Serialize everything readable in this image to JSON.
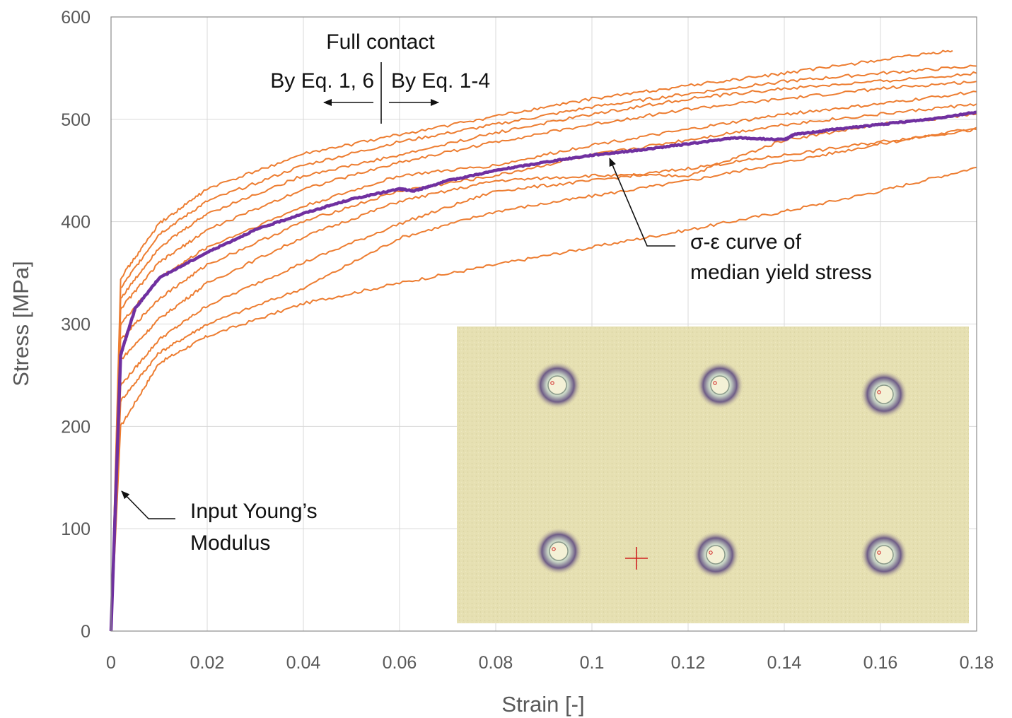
{
  "chart_data": {
    "type": "line",
    "xlabel": "Strain [-]",
    "ylabel": "Stress [MPa]",
    "xlim": [
      0,
      0.18
    ],
    "ylim": [
      0,
      600
    ],
    "x_ticks": [
      0,
      0.02,
      0.04,
      0.06,
      0.08,
      0.1,
      0.12,
      0.14,
      0.16,
      0.18
    ],
    "x_tick_labels": [
      "0",
      "0.02",
      "0.04",
      "0.06",
      "0.08",
      "0.1",
      "0.12",
      "0.14",
      "0.16",
      "0.18"
    ],
    "y_ticks": [
      0,
      100,
      200,
      300,
      400,
      500,
      600
    ],
    "y_tick_labels": [
      "0",
      "100",
      "200",
      "300",
      "400",
      "500",
      "600"
    ],
    "grid": true,
    "colors": {
      "individual": "#ED7D31",
      "median": "#7030A0",
      "grid": "#d9d9d9",
      "axis": "#595959"
    },
    "series": [
      {
        "role": "individual",
        "values": [
          [
            0,
            0
          ],
          [
            0.002,
            200
          ],
          [
            0.01,
            262
          ],
          [
            0.02,
            288
          ],
          [
            0.04,
            320
          ],
          [
            0.06,
            340
          ],
          [
            0.08,
            358
          ],
          [
            0.1,
            375
          ],
          [
            0.12,
            392
          ],
          [
            0.14,
            410
          ],
          [
            0.16,
            430
          ],
          [
            0.18,
            453
          ]
        ]
      },
      {
        "role": "individual",
        "values": [
          [
            0,
            0
          ],
          [
            0.002,
            225
          ],
          [
            0.01,
            272
          ],
          [
            0.02,
            300
          ],
          [
            0.04,
            335
          ],
          [
            0.06,
            384
          ],
          [
            0.08,
            410
          ],
          [
            0.1,
            425
          ],
          [
            0.12,
            440
          ],
          [
            0.14,
            458
          ],
          [
            0.16,
            476
          ],
          [
            0.18,
            492
          ]
        ]
      },
      {
        "role": "individual",
        "values": [
          [
            0,
            0
          ],
          [
            0.002,
            240
          ],
          [
            0.01,
            285
          ],
          [
            0.02,
            318
          ],
          [
            0.04,
            360
          ],
          [
            0.06,
            398
          ],
          [
            0.08,
            430
          ],
          [
            0.1,
            440
          ],
          [
            0.12,
            452
          ],
          [
            0.14,
            465
          ],
          [
            0.16,
            478
          ],
          [
            0.18,
            490
          ]
        ]
      },
      {
        "role": "individual",
        "values": [
          [
            0,
            0
          ],
          [
            0.002,
            265
          ],
          [
            0.01,
            305
          ],
          [
            0.02,
            340
          ],
          [
            0.04,
            385
          ],
          [
            0.06,
            420
          ],
          [
            0.08,
            440
          ],
          [
            0.1,
            445
          ],
          [
            0.12,
            445
          ],
          [
            0.14,
            480
          ],
          [
            0.16,
            495
          ],
          [
            0.18,
            505
          ]
        ]
      },
      {
        "role": "individual",
        "values": [
          [
            0,
            0
          ],
          [
            0.002,
            285
          ],
          [
            0.01,
            325
          ],
          [
            0.02,
            358
          ],
          [
            0.04,
            400
          ],
          [
            0.06,
            430
          ],
          [
            0.08,
            445
          ],
          [
            0.1,
            465
          ],
          [
            0.12,
            480
          ],
          [
            0.14,
            495
          ],
          [
            0.16,
            505
          ],
          [
            0.18,
            515
          ]
        ]
      },
      {
        "role": "individual",
        "values": [
          [
            0,
            0
          ],
          [
            0.002,
            300
          ],
          [
            0.01,
            345
          ],
          [
            0.02,
            375
          ],
          [
            0.04,
            415
          ],
          [
            0.06,
            445
          ],
          [
            0.08,
            455
          ],
          [
            0.1,
            475
          ],
          [
            0.12,
            490
          ],
          [
            0.14,
            505
          ],
          [
            0.16,
            515
          ],
          [
            0.18,
            527
          ]
        ]
      },
      {
        "role": "individual",
        "values": [
          [
            0,
            0
          ],
          [
            0.002,
            315
          ],
          [
            0.01,
            360
          ],
          [
            0.02,
            392
          ],
          [
            0.04,
            432
          ],
          [
            0.06,
            458
          ],
          [
            0.08,
            478
          ],
          [
            0.1,
            495
          ],
          [
            0.12,
            510
          ],
          [
            0.14,
            520
          ],
          [
            0.16,
            530
          ],
          [
            0.18,
            537
          ]
        ]
      },
      {
        "role": "individual",
        "values": [
          [
            0,
            0
          ],
          [
            0.002,
            325
          ],
          [
            0.01,
            375
          ],
          [
            0.02,
            408
          ],
          [
            0.04,
            445
          ],
          [
            0.06,
            465
          ],
          [
            0.08,
            487
          ],
          [
            0.1,
            505
          ],
          [
            0.12,
            520
          ],
          [
            0.14,
            530
          ],
          [
            0.16,
            537
          ],
          [
            0.18,
            545
          ]
        ]
      },
      {
        "role": "individual",
        "values": [
          [
            0,
            0
          ],
          [
            0.002,
            335
          ],
          [
            0.01,
            388
          ],
          [
            0.02,
            420
          ],
          [
            0.04,
            455
          ],
          [
            0.06,
            478
          ],
          [
            0.08,
            495
          ],
          [
            0.1,
            512
          ],
          [
            0.12,
            525
          ],
          [
            0.14,
            537
          ],
          [
            0.16,
            545
          ],
          [
            0.18,
            552
          ]
        ]
      },
      {
        "role": "individual",
        "values": [
          [
            0,
            0
          ],
          [
            0.002,
            345
          ],
          [
            0.01,
            398
          ],
          [
            0.02,
            432
          ],
          [
            0.04,
            466
          ],
          [
            0.06,
            485
          ],
          [
            0.08,
            503
          ],
          [
            0.1,
            520
          ],
          [
            0.12,
            533
          ],
          [
            0.14,
            545
          ],
          [
            0.16,
            558
          ],
          [
            0.175,
            567
          ]
        ]
      },
      {
        "role": "median",
        "values": [
          [
            0,
            0
          ],
          [
            0.002,
            270
          ],
          [
            0.005,
            315
          ],
          [
            0.01,
            345
          ],
          [
            0.02,
            370
          ],
          [
            0.03,
            392
          ],
          [
            0.04,
            408
          ],
          [
            0.05,
            422
          ],
          [
            0.06,
            432
          ],
          [
            0.063,
            430
          ],
          [
            0.07,
            440
          ],
          [
            0.08,
            450
          ],
          [
            0.09,
            458
          ],
          [
            0.1,
            465
          ],
          [
            0.11,
            470
          ],
          [
            0.12,
            476
          ],
          [
            0.13,
            482
          ],
          [
            0.14,
            480
          ],
          [
            0.142,
            485
          ],
          [
            0.15,
            490
          ],
          [
            0.16,
            495
          ],
          [
            0.17,
            500
          ],
          [
            0.18,
            507
          ]
        ]
      }
    ],
    "annotations": {
      "full_contact": "Full contact",
      "left_method": "By Eq. 1, 6",
      "right_method": "By Eq. 1-4",
      "median_line1": "σ-ε curve of",
      "median_line2": "median yield stress",
      "youngs_line1": "Input Young’s",
      "youngs_line2": "Modulus"
    }
  }
}
